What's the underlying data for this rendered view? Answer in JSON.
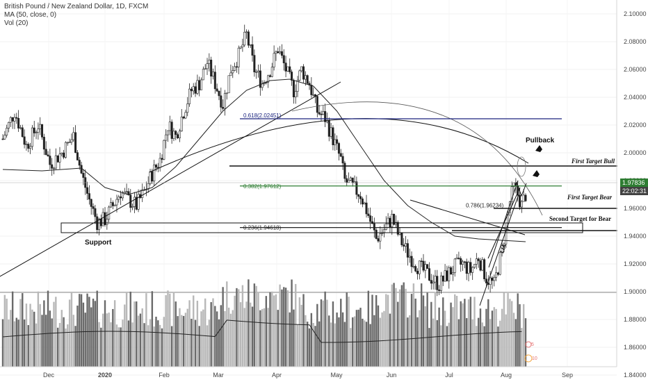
{
  "header": {
    "symbol_line": "British Pound / New Zealand Dollar, 1D, FXCM",
    "ma_line": "MA (50, close, 0)",
    "vol_line": "Vol (20)"
  },
  "price_tags": {
    "last_price": "1.97836",
    "countdown": "22:02:31",
    "last_price_color": "#2e7d32",
    "countdown_color": "#424242"
  },
  "chart_data": {
    "type": "candlestick",
    "y_axis": {
      "range": [
        1.835,
        2.11
      ],
      "ticks": [
        "2.10000",
        "2.08000",
        "2.06000",
        "2.04000",
        "2.02000",
        "2.00000",
        "1.98000",
        "1.96000",
        "1.94000",
        "1.92000",
        "1.90000",
        "1.88000",
        "1.86000",
        "1.84000"
      ]
    },
    "x_axis": {
      "labels": [
        "Dec",
        "2020",
        "Feb",
        "Mar",
        "Apr",
        "May",
        "Jun",
        "Jul",
        "Aug",
        "Sep"
      ]
    },
    "price_path": [
      [
        0,
        2.01
      ],
      [
        6,
        2.03
      ],
      [
        12,
        2.005
      ],
      [
        18,
        2.02
      ],
      [
        24,
        1.992
      ],
      [
        30,
        2.0
      ],
      [
        36,
        2.012
      ],
      [
        40,
        1.985
      ],
      [
        44,
        1.966
      ],
      [
        48,
        1.95
      ],
      [
        52,
        1.952
      ],
      [
        56,
        1.962
      ],
      [
        60,
        1.972
      ],
      [
        64,
        1.966
      ],
      [
        68,
        1.962
      ],
      [
        72,
        1.972
      ],
      [
        76,
        1.985
      ],
      [
        80,
        1.995
      ],
      [
        84,
        2.02
      ],
      [
        88,
        2.012
      ],
      [
        92,
        2.03
      ],
      [
        96,
        2.045
      ],
      [
        100,
        2.05
      ],
      [
        104,
        2.065
      ],
      [
        108,
        2.05
      ],
      [
        112,
        2.035
      ],
      [
        116,
        2.06
      ],
      [
        120,
        2.07
      ],
      [
        124,
        2.085
      ],
      [
        128,
        2.06
      ],
      [
        132,
        2.05
      ],
      [
        136,
        2.06
      ],
      [
        140,
        2.075
      ],
      [
        144,
        2.06
      ],
      [
        148,
        2.045
      ],
      [
        152,
        2.06
      ],
      [
        156,
        2.05
      ],
      [
        160,
        2.03
      ],
      [
        164,
        2.025
      ],
      [
        168,
        2.01
      ],
      [
        172,
        1.995
      ],
      [
        174,
        1.98
      ],
      [
        178,
        1.975
      ],
      [
        182,
        1.97
      ],
      [
        186,
        1.955
      ],
      [
        190,
        1.938
      ],
      [
        194,
        1.945
      ],
      [
        198,
        1.953
      ],
      [
        202,
        1.938
      ],
      [
        206,
        1.928
      ],
      [
        210,
        1.92
      ],
      [
        214,
        1.915
      ],
      [
        218,
        1.91
      ],
      [
        222,
        1.905
      ],
      [
        226,
        1.912
      ],
      [
        230,
        1.918
      ],
      [
        234,
        1.92
      ],
      [
        238,
        1.915
      ],
      [
        242,
        1.925
      ],
      [
        246,
        1.91
      ],
      [
        250,
        1.905
      ],
      [
        254,
        1.93
      ],
      [
        258,
        1.965
      ],
      [
        260,
        1.975
      ],
      [
        262,
        1.97
      ],
      [
        264,
        1.962
      ],
      [
        266,
        1.97
      ]
    ],
    "moving_average": [
      [
        0,
        1.988
      ],
      [
        20,
        1.987
      ],
      [
        40,
        1.989
      ],
      [
        52,
        1.975
      ],
      [
        64,
        1.97
      ],
      [
        76,
        1.975
      ],
      [
        88,
        1.99
      ],
      [
        100,
        2.01
      ],
      [
        112,
        2.03
      ],
      [
        124,
        2.045
      ],
      [
        136,
        2.052
      ],
      [
        146,
        2.053
      ],
      [
        158,
        2.048
      ],
      [
        170,
        2.03
      ],
      [
        182,
        2.005
      ],
      [
        194,
        1.98
      ],
      [
        206,
        1.962
      ],
      [
        218,
        1.95
      ],
      [
        230,
        1.94
      ],
      [
        242,
        1.938
      ],
      [
        254,
        1.937
      ],
      [
        266,
        1.936
      ]
    ],
    "annotations": {
      "fib_levels": [
        {
          "label": "0.618(2.02451)",
          "value": 2.02451,
          "color": "#1a237e"
        },
        {
          "label": "0.382(1.97612)",
          "value": 1.97612,
          "color": "#2e7d32"
        },
        {
          "label": "0.236(1.94618)",
          "value": 1.94618,
          "color": "#222222"
        },
        {
          "label": "0.786(1.96234)",
          "value": 1.96234,
          "color": "#222222"
        }
      ],
      "texts": {
        "pullback": "Pullback",
        "first_target_bull": "First Target Bull",
        "first_target_bear": "First Target Bear",
        "second_target_bear": "Second Target for Bear",
        "support": "Support",
        "lia": "LIA"
      },
      "indicators": {
        "count_5": "5",
        "count_10": "10"
      }
    }
  }
}
